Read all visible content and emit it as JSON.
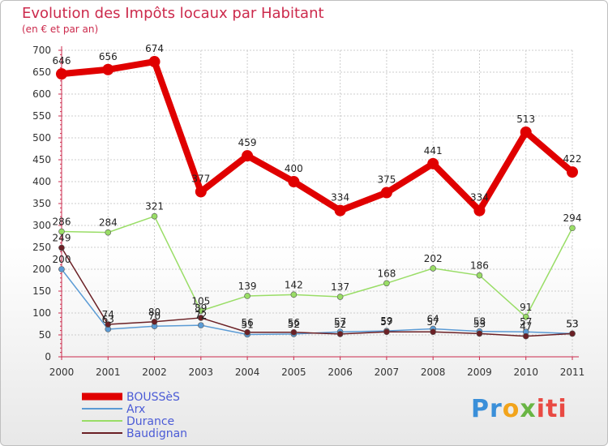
{
  "chart_data": {
    "type": "line",
    "title": "Evolution des Impôts locaux par Habitant",
    "subtitle": "(en € et par an)",
    "x": [
      "2000",
      "2001",
      "2002",
      "2003",
      "2004",
      "2005",
      "2006",
      "2007",
      "2008",
      "2009",
      "2010",
      "2011"
    ],
    "yticks": [
      0,
      50,
      100,
      150,
      200,
      250,
      300,
      350,
      400,
      450,
      500,
      550,
      600,
      650,
      700
    ],
    "ylim": [
      0,
      700
    ],
    "grid": true,
    "legend_position": "bottom-left",
    "series": [
      {
        "name": "BOUSSèS",
        "color": "#e00000",
        "values": [
          646,
          656,
          674,
          377,
          459,
          400,
          334,
          375,
          441,
          334,
          513,
          422
        ],
        "labels": [
          "646",
          "656",
          "674",
          "377",
          "459",
          "400",
          "334",
          "375",
          "441",
          "334",
          "513",
          "422"
        ]
      },
      {
        "name": "Arx",
        "color": "#5b9bd5",
        "values": [
          200,
          63,
          70,
          72,
          51,
          52,
          57,
          59,
          64,
          58,
          57,
          53
        ],
        "labels": [
          "200",
          "63",
          "70",
          "72",
          "51",
          "52",
          "57",
          "59",
          "64",
          "58",
          "57",
          "53"
        ]
      },
      {
        "name": "Durance",
        "color": "#99dd66",
        "values": [
          286,
          284,
          321,
          105,
          139,
          142,
          137,
          168,
          202,
          186,
          91,
          294
        ],
        "labels": [
          "286",
          "284",
          "321",
          "105",
          "139",
          "142",
          "137",
          "168",
          "202",
          "186",
          "91",
          "294"
        ]
      },
      {
        "name": "Baudignan",
        "color": "#6b2025",
        "values": [
          249,
          74,
          80,
          89,
          56,
          56,
          52,
          57,
          57,
          53,
          47,
          53
        ],
        "labels": [
          "249",
          "74",
          "80",
          "89",
          "56",
          "56",
          "52",
          "57",
          "57",
          "53",
          "47",
          "53"
        ]
      }
    ]
  },
  "logo": {
    "p1": "Pr",
    "p2": "o",
    "p3": "x",
    "p4": "iti"
  }
}
